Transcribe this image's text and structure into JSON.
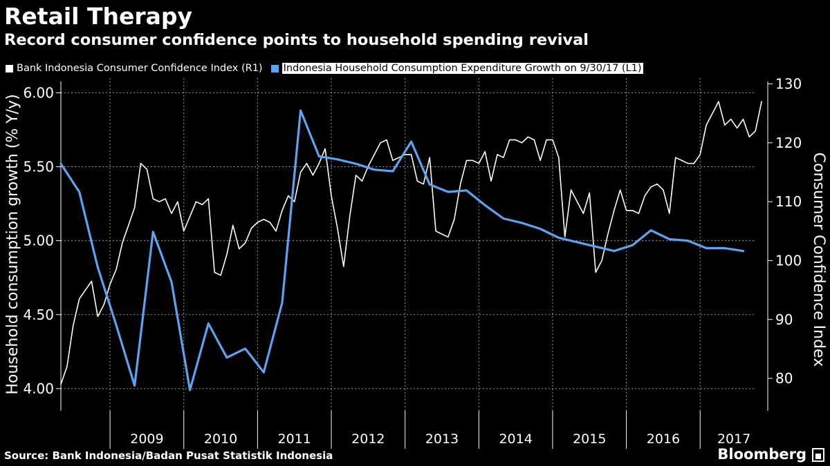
{
  "title": "Retail Therapy",
  "subtitle": "Record consumer confidence points to household spending revival",
  "source": "Source: Bank Indonesia/Badan Pusat Statistik Indonesia",
  "brand": "Bloomberg",
  "colors": {
    "background": "#000000",
    "confidence": "#ffffff",
    "consumption": "#5aa4f0",
    "grid": "#9a9a9a"
  },
  "chart_data": {
    "type": "line",
    "x_axis": {
      "ticks": [
        "2009",
        "2010",
        "2011",
        "2012",
        "2013",
        "2014",
        "2015",
        "2016",
        "2017"
      ],
      "range": [
        "2008-05",
        "2017-12"
      ]
    },
    "y_left": {
      "label": "Household consumption growth (% Y/y)",
      "range": [
        3.85,
        6.1
      ],
      "ticks": [
        "4.00",
        "4.50",
        "5.00",
        "5.50",
        "6.00"
      ]
    },
    "y_right": {
      "label": "Consumer Confidence Index",
      "range": [
        74.5,
        131
      ],
      "ticks": [
        "80",
        "90",
        "100",
        "110",
        "120",
        "130"
      ]
    },
    "grid": true,
    "legend_placement": "top-left",
    "series": [
      {
        "name": "Bank Indonesia Consumer Confidence Index (R1)",
        "axis": "right",
        "color": "#ffffff",
        "x": [
          "2008-05",
          "2008-06",
          "2008-07",
          "2008-08",
          "2008-09",
          "2008-10",
          "2008-11",
          "2008-12",
          "2009-01",
          "2009-02",
          "2009-03",
          "2009-04",
          "2009-05",
          "2009-06",
          "2009-07",
          "2009-08",
          "2009-09",
          "2009-10",
          "2009-11",
          "2009-12",
          "2010-01",
          "2010-02",
          "2010-03",
          "2010-04",
          "2010-05",
          "2010-06",
          "2010-07",
          "2010-08",
          "2010-09",
          "2010-10",
          "2010-11",
          "2010-12",
          "2011-01",
          "2011-02",
          "2011-03",
          "2011-04",
          "2011-05",
          "2011-06",
          "2011-07",
          "2011-08",
          "2011-09",
          "2011-10",
          "2011-11",
          "2011-12",
          "2012-01",
          "2012-02",
          "2012-03",
          "2012-04",
          "2012-05",
          "2012-06",
          "2012-07",
          "2012-08",
          "2012-09",
          "2012-10",
          "2012-11",
          "2012-12",
          "2013-01",
          "2013-02",
          "2013-03",
          "2013-04",
          "2013-05",
          "2013-06",
          "2013-07",
          "2013-08",
          "2013-09",
          "2013-10",
          "2013-11",
          "2013-12",
          "2014-01",
          "2014-02",
          "2014-03",
          "2014-04",
          "2014-05",
          "2014-06",
          "2014-07",
          "2014-08",
          "2014-09",
          "2014-10",
          "2014-11",
          "2014-12",
          "2015-01",
          "2015-02",
          "2015-03",
          "2015-04",
          "2015-05",
          "2015-06",
          "2015-07",
          "2015-08",
          "2015-09",
          "2015-10",
          "2015-11",
          "2015-12",
          "2016-01",
          "2016-02",
          "2016-03",
          "2016-04",
          "2016-05",
          "2016-06",
          "2016-07",
          "2016-08",
          "2016-09",
          "2016-10",
          "2016-11",
          "2016-12",
          "2017-01",
          "2017-02",
          "2017-03",
          "2017-04",
          "2017-05",
          "2017-06",
          "2017-07",
          "2017-08",
          "2017-09",
          "2017-10",
          "2017-11"
        ],
        "values": [
          79,
          82,
          89,
          93.5,
          95,
          96.5,
          90.5,
          92.5,
          96,
          98.5,
          103,
          106,
          109,
          116.5,
          115.5,
          110.5,
          110,
          110.5,
          108,
          110,
          105,
          107.5,
          110,
          109.5,
          110.5,
          98,
          97.5,
          101,
          106,
          102,
          103,
          105.5,
          106.5,
          107,
          106.5,
          105,
          108.5,
          111,
          110,
          115,
          116.5,
          114.5,
          116.5,
          119,
          111,
          105.5,
          99,
          107.5,
          114.5,
          113.5,
          116,
          118,
          120,
          120.5,
          117,
          117.5,
          118,
          118,
          113.5,
          113,
          117.5,
          105,
          104.5,
          104,
          107,
          113,
          117,
          117,
          116.5,
          118.5,
          113.5,
          118,
          117.5,
          120.5,
          120.5,
          120,
          121,
          120.5,
          117,
          120.5,
          120.5,
          117.5,
          104,
          112,
          110,
          108,
          111.5,
          98,
          100,
          104.5,
          108.5,
          112,
          108.5,
          108.5,
          108,
          111,
          112.5,
          113,
          112,
          108,
          117.5,
          117,
          116.5,
          116.5,
          118,
          123,
          125,
          127,
          123,
          124,
          122.5,
          124,
          121,
          122,
          127
        ]
      },
      {
        "name": "Indonesia Household Consumption Expenditure Growth on 9/30/17 (L1)",
        "axis": "left",
        "color": "#5aa4f0",
        "x": [
          "2008-05",
          "2008-08",
          "2008-11",
          "2009-02",
          "2009-05",
          "2009-08",
          "2009-11",
          "2010-02",
          "2010-05",
          "2010-08",
          "2010-11",
          "2011-02",
          "2011-05",
          "2011-08",
          "2011-11",
          "2012-02",
          "2012-05",
          "2012-08",
          "2012-11",
          "2013-02",
          "2013-05",
          "2013-08",
          "2013-11",
          "2014-02",
          "2014-05",
          "2014-08",
          "2014-11",
          "2015-02",
          "2015-05",
          "2015-08",
          "2015-11",
          "2016-02",
          "2016-05",
          "2016-08",
          "2016-11",
          "2017-02",
          "2017-05",
          "2017-08"
        ],
        "values": [
          5.52,
          5.33,
          4.82,
          4.43,
          4.02,
          5.06,
          4.72,
          3.99,
          4.44,
          4.21,
          4.27,
          4.11,
          4.58,
          5.88,
          5.57,
          5.55,
          5.52,
          5.48,
          5.47,
          5.67,
          5.38,
          5.33,
          5.34,
          5.24,
          5.15,
          5.12,
          5.08,
          5.02,
          4.99,
          4.96,
          4.93,
          4.97,
          5.07,
          5.01,
          5.0,
          4.95,
          4.95,
          4.93
        ]
      }
    ]
  }
}
